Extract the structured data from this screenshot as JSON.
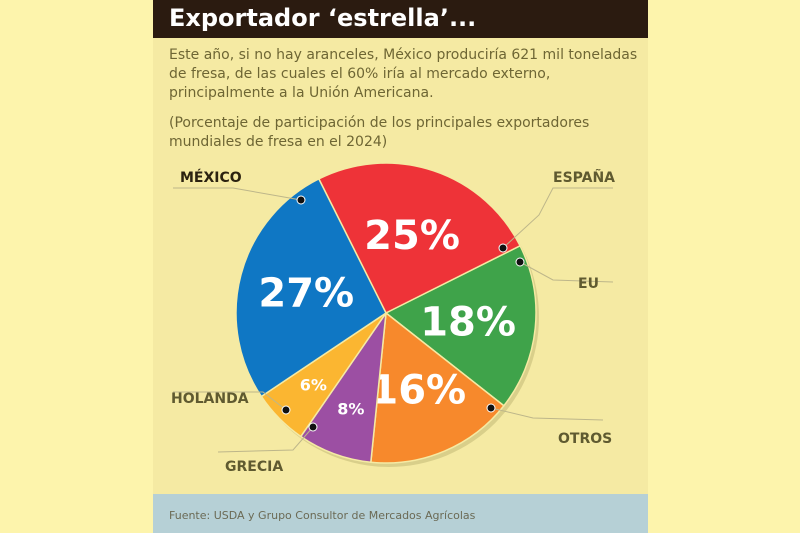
{
  "header": {
    "title": "Exportador ‘estrella’..."
  },
  "intro": "Este año, si no hay aranceles, México produciría 621 mil toneladas de fresa, de las cuales el 60% iría al mercado externo, principalmente a la Unión Americana.",
  "note": "(Porcentaje de participación de los principales exportadores mundiales de fresa en el 2024)",
  "footer": {
    "source": "Fuente: USDA y Grupo Consultor de Mercados Agrícolas"
  },
  "chart_data": {
    "type": "pie",
    "title": "",
    "slices": [
      {
        "label": "ESPAÑA",
        "value": 25,
        "display": "25%",
        "color": "#ee3338"
      },
      {
        "label": "EU",
        "value": 18,
        "display": "18%",
        "color": "#3fa34a"
      },
      {
        "label": "OTROS",
        "value": 16,
        "display": "16%",
        "color": "#f7892c"
      },
      {
        "label": "GRECIA",
        "value": 8,
        "display": "8%",
        "color": "#9c4fa3"
      },
      {
        "label": "HOLANDA",
        "value": 6,
        "display": "6%",
        "color": "#fbb631"
      },
      {
        "label": "MÉXICO",
        "value": 27,
        "display": "27%",
        "color": "#0f77c4"
      }
    ],
    "order": "clockwise",
    "highlighted": "MÉXICO"
  }
}
